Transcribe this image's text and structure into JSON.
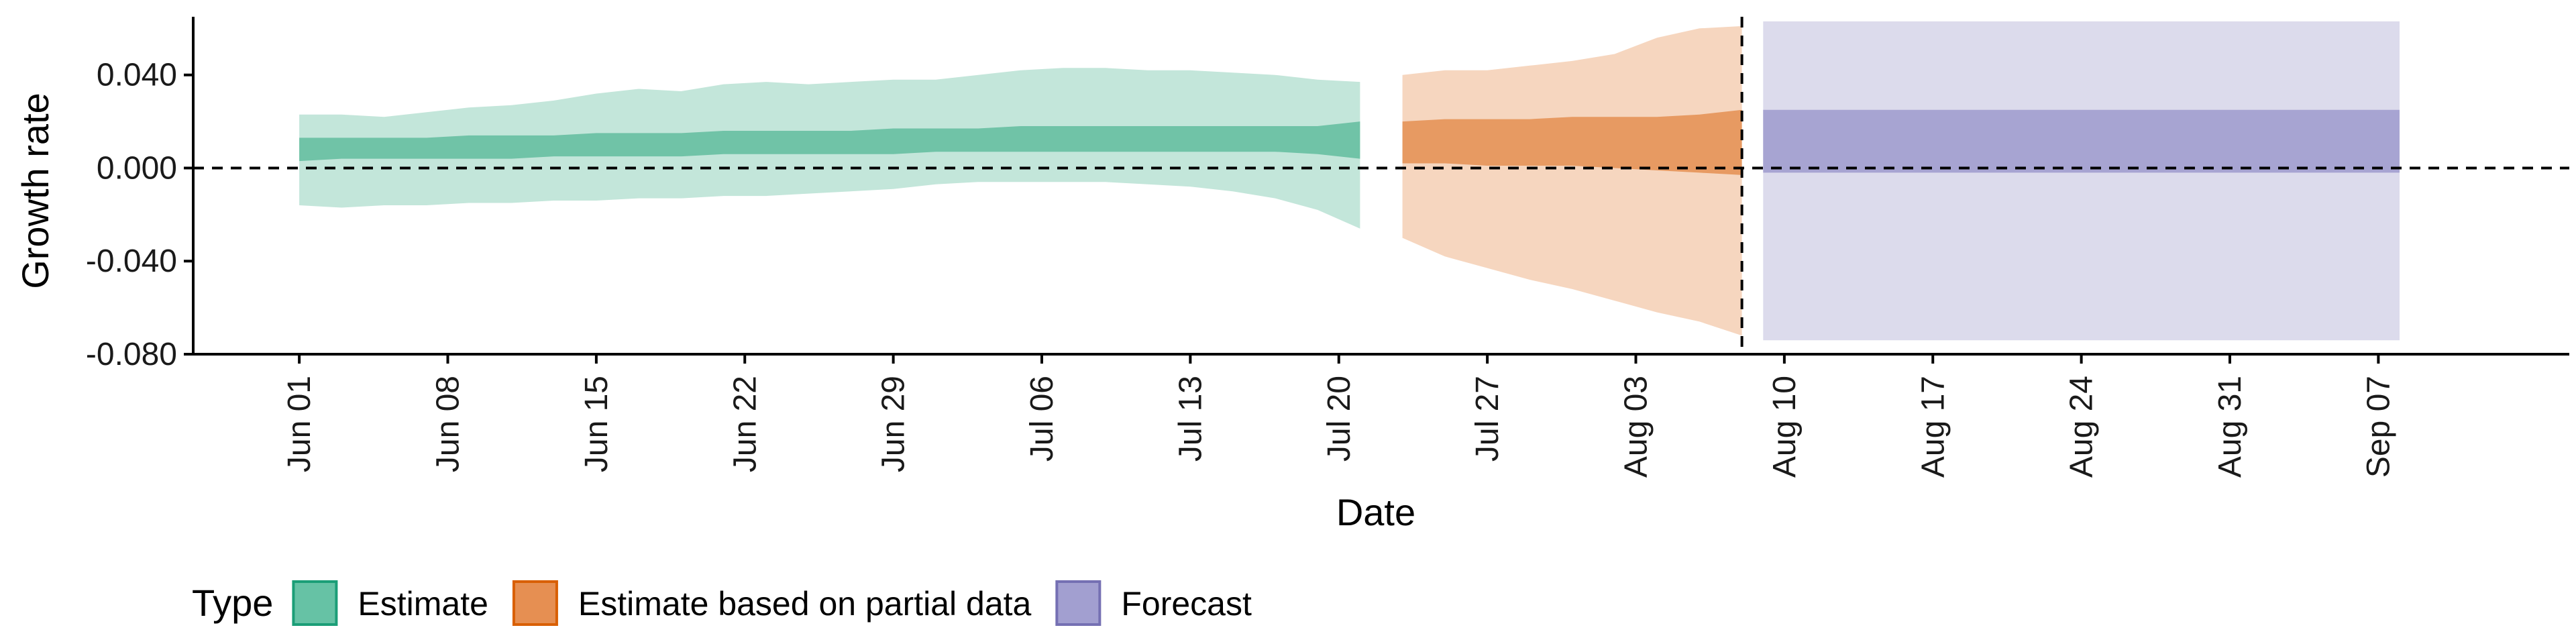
{
  "chart_data": {
    "type": "area",
    "xlabel": "Date",
    "ylabel": "Growth rate",
    "ylim": [
      -0.08,
      0.065
    ],
    "y_ticks": [
      -0.08,
      -0.04,
      0.0,
      0.04
    ],
    "y_tick_labels": [
      "-0.080",
      "-0.040",
      "0.000",
      "0.040"
    ],
    "x_range": [
      "2020-05-27",
      "2020-09-16"
    ],
    "x_ticks": [
      "2020-06-01",
      "2020-06-08",
      "2020-06-15",
      "2020-06-22",
      "2020-06-29",
      "2020-07-06",
      "2020-07-13",
      "2020-07-20",
      "2020-07-27",
      "2020-08-03",
      "2020-08-10",
      "2020-08-17",
      "2020-08-24",
      "2020-08-31",
      "2020-09-07"
    ],
    "x_tick_labels": [
      "Jun 01",
      "Jun 08",
      "Jun 15",
      "Jun 22",
      "Jun 29",
      "Jul 06",
      "Jul 13",
      "Jul 20",
      "Jul 27",
      "Aug 03",
      "Aug 10",
      "Aug 17",
      "Aug 24",
      "Aug 31",
      "Sep 07"
    ],
    "hline_y": 0.0,
    "vline_x": "2020-08-08",
    "grid": false,
    "legend": {
      "title": "Type",
      "position": "bottom-left",
      "entries": [
        {
          "label": "Estimate",
          "color": "#66c2a5",
          "border": "#1b9e77"
        },
        {
          "label": "Estimate based on partial data",
          "color": "#e68f52",
          "border": "#d95f02"
        },
        {
          "label": "Forecast",
          "color": "#a29fd0",
          "border": "#7570b3"
        }
      ]
    },
    "series": [
      {
        "name": "Estimate",
        "color_outer": "#c3e6da",
        "color_inner": "#70c3a7",
        "x": [
          "2020-06-01",
          "2020-06-03",
          "2020-06-05",
          "2020-06-07",
          "2020-06-09",
          "2020-06-11",
          "2020-06-13",
          "2020-06-15",
          "2020-06-17",
          "2020-06-19",
          "2020-06-21",
          "2020-06-23",
          "2020-06-25",
          "2020-06-27",
          "2020-06-29",
          "2020-07-01",
          "2020-07-03",
          "2020-07-05",
          "2020-07-07",
          "2020-07-09",
          "2020-07-11",
          "2020-07-13",
          "2020-07-15",
          "2020-07-17",
          "2020-07-19",
          "2020-07-21"
        ],
        "outer_upper": [
          0.023,
          0.023,
          0.022,
          0.024,
          0.026,
          0.027,
          0.029,
          0.032,
          0.034,
          0.033,
          0.036,
          0.037,
          0.036,
          0.037,
          0.038,
          0.038,
          0.04,
          0.042,
          0.043,
          0.043,
          0.042,
          0.042,
          0.041,
          0.04,
          0.038,
          0.037
        ],
        "inner_upper": [
          0.013,
          0.013,
          0.013,
          0.013,
          0.014,
          0.014,
          0.014,
          0.015,
          0.015,
          0.015,
          0.016,
          0.016,
          0.016,
          0.016,
          0.017,
          0.017,
          0.017,
          0.018,
          0.018,
          0.018,
          0.018,
          0.018,
          0.018,
          0.018,
          0.018,
          0.02
        ],
        "inner_lower": [
          0.003,
          0.004,
          0.004,
          0.004,
          0.004,
          0.004,
          0.005,
          0.005,
          0.005,
          0.005,
          0.006,
          0.006,
          0.006,
          0.006,
          0.006,
          0.007,
          0.007,
          0.007,
          0.007,
          0.007,
          0.007,
          0.007,
          0.007,
          0.007,
          0.006,
          0.004
        ],
        "outer_lower": [
          -0.016,
          -0.017,
          -0.016,
          -0.016,
          -0.015,
          -0.015,
          -0.014,
          -0.014,
          -0.013,
          -0.013,
          -0.012,
          -0.012,
          -0.011,
          -0.01,
          -0.009,
          -0.007,
          -0.006,
          -0.006,
          -0.006,
          -0.006,
          -0.007,
          -0.008,
          -0.01,
          -0.013,
          -0.018,
          -0.026
        ]
      },
      {
        "name": "Estimate based on partial data",
        "color_outer": "#f6d6bf",
        "color_inner": "#e79a62",
        "x": [
          "2020-07-23",
          "2020-07-25",
          "2020-07-27",
          "2020-07-29",
          "2020-07-31",
          "2020-08-02",
          "2020-08-04",
          "2020-08-06",
          "2020-08-08"
        ],
        "outer_upper": [
          0.04,
          0.042,
          0.042,
          0.044,
          0.046,
          0.049,
          0.056,
          0.06,
          0.061
        ],
        "inner_upper": [
          0.02,
          0.021,
          0.021,
          0.021,
          0.022,
          0.022,
          0.022,
          0.023,
          0.025
        ],
        "inner_lower": [
          0.002,
          0.002,
          0.001,
          0.001,
          0.001,
          0.0,
          -0.001,
          -0.002,
          -0.003
        ],
        "outer_lower": [
          -0.03,
          -0.038,
          -0.043,
          -0.048,
          -0.052,
          -0.057,
          -0.062,
          -0.066,
          -0.072
        ]
      },
      {
        "name": "Forecast",
        "color_outer": "#dcdbec",
        "color_inner": "#a7a4d2",
        "x": [
          "2020-08-09",
          "2020-09-08"
        ],
        "outer_upper": [
          0.063,
          0.063
        ],
        "inner_upper": [
          0.025,
          0.025
        ],
        "inner_lower": [
          -0.002,
          -0.002
        ],
        "outer_lower": [
          -0.074,
          -0.074
        ]
      }
    ]
  }
}
